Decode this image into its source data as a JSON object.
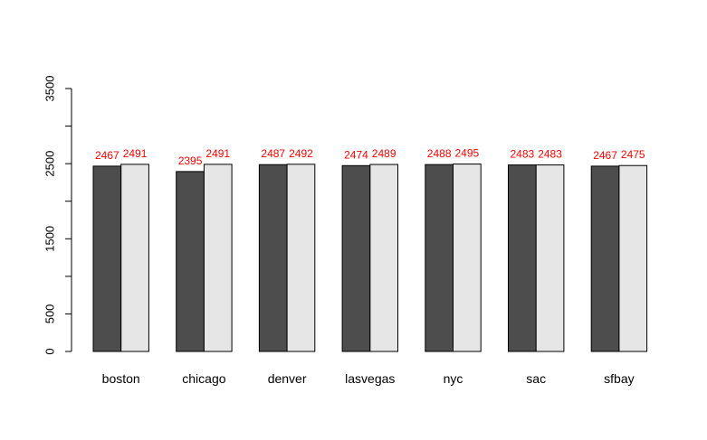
{
  "chart_data": {
    "type": "bar",
    "categories": [
      "boston",
      "chicago",
      "denver",
      "lasvegas",
      "nyc",
      "sac",
      "sfbay"
    ],
    "series": [
      {
        "values": [
          2467,
          2395,
          2487,
          2474,
          2488,
          2483,
          2467
        ],
        "color": "#4d4d4d"
      },
      {
        "values": [
          2491,
          2491,
          2492,
          2489,
          2495,
          2483,
          2475
        ],
        "color": "#e6e6e6"
      }
    ],
    "yticks": [
      0,
      500,
      1500,
      2500,
      3500
    ],
    "ylim": [
      0,
      3500
    ],
    "data_label_color": "#ff0000",
    "grid": false,
    "legend": "none"
  }
}
